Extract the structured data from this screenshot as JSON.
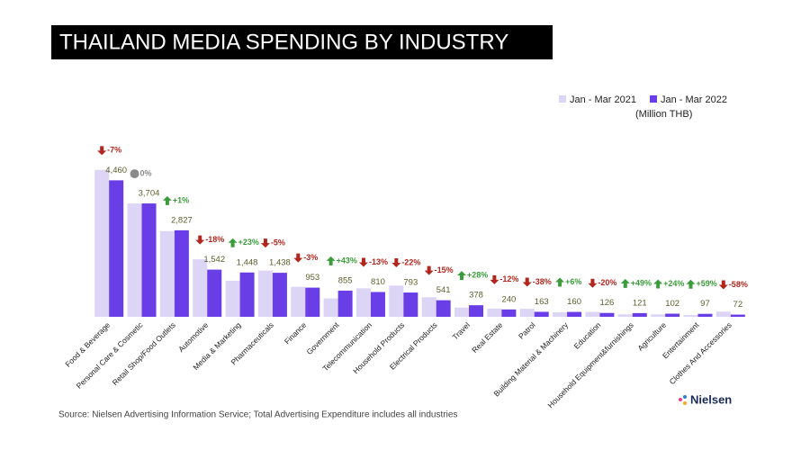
{
  "chart_data": {
    "type": "bar",
    "title": "THAILAND MEDIA SPENDING BY INDUSTRY",
    "unit_label": "(Million THB)",
    "source": "Source: Nielsen Advertising Information Service; Total Advertising Expenditure includes all industries",
    "brand": "Nielsen",
    "categories": [
      "Food & Beverage",
      "Personal Care & Cosmetic",
      "Retail Shop/Food Outlets",
      "Automotive",
      "Media & Marketing",
      "Pharmaceuticals",
      "Finance",
      "Government",
      "Telecommunication",
      "Household Products",
      "Electrical Products",
      "Travel",
      "Real Estate",
      "Patrol",
      "Building Material & Machinery",
      "Education",
      "Household Equipment&furnishings",
      "Agriculture",
      "Entertainment",
      "Clothes And Accessories"
    ],
    "series": [
      {
        "name": "Jan - Mar 2021",
        "color": "#ddd5f6",
        "values": [
          4800,
          3704,
          2800,
          1880,
          1180,
          1510,
          980,
          600,
          930,
          1020,
          640,
          300,
          270,
          260,
          150,
          160,
          80,
          80,
          60,
          170
        ]
      },
      {
        "name": "Jan - Mar 2022",
        "color": "#6a3ee6",
        "values": [
          4460,
          3704,
          2827,
          1542,
          1448,
          1438,
          953,
          855,
          810,
          793,
          541,
          378,
          240,
          163,
          160,
          126,
          121,
          102,
          97,
          72
        ],
        "value_labels": [
          "4,460",
          "3,704",
          "2,827",
          "1,542",
          "1,448",
          "1,438",
          "953",
          "855",
          "810",
          "793",
          "541",
          "378",
          "240",
          "163",
          "160",
          "126",
          "121",
          "102",
          "97",
          "72"
        ]
      }
    ],
    "annotations": [
      "-7%",
      "0%",
      "+1%",
      "-18%",
      "+23%",
      "-5%",
      "-3%",
      "+43%",
      "-13%",
      "-22%",
      "-15%",
      "+28%",
      "-12%",
      "-38%",
      "+6%",
      "-20%",
      "+49%",
      "+24%",
      "+59%",
      "-58%"
    ],
    "ylim": [
      0,
      5000
    ]
  }
}
